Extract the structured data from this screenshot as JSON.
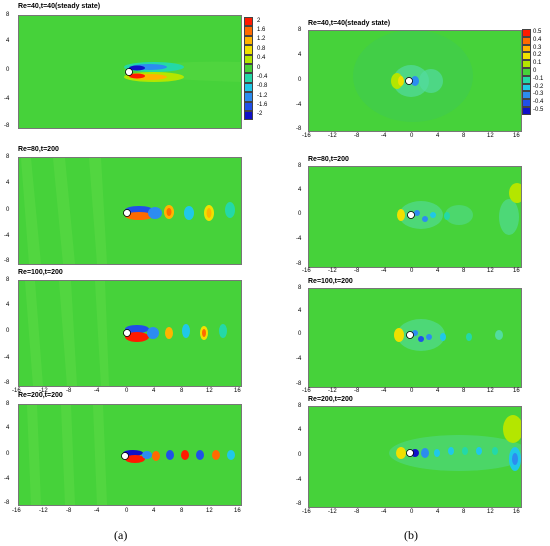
{
  "panels": [
    {
      "id": "a1",
      "title": "Re=40,t=40(steady state)",
      "column": "a"
    },
    {
      "id": "a2",
      "title": "Re=80,t=200",
      "column": "a"
    },
    {
      "id": "a3",
      "title": "Re=100,t=200",
      "column": "a"
    },
    {
      "id": "a4",
      "title": "Re=200,t=200",
      "column": "a"
    },
    {
      "id": "b1",
      "title": "Re=40,t=40(steady state)",
      "column": "b"
    },
    {
      "id": "b2",
      "title": "Re=80,t=200",
      "column": "b"
    },
    {
      "id": "b3",
      "title": "Re=100,t=200",
      "column": "b"
    },
    {
      "id": "b4",
      "title": "Re=200,t=200",
      "column": "b"
    }
  ],
  "axes": {
    "x_ticks_a": [
      "-16",
      "-12",
      "-8",
      "-4",
      "0",
      "4",
      "8",
      "12",
      "16"
    ],
    "x_ticks_b": [
      "-16",
      "-12",
      "-8",
      "-4",
      "0",
      "4",
      "8",
      "12",
      "16"
    ],
    "y_ticks": [
      "8",
      "4",
      "0",
      "-4",
      "-8"
    ]
  },
  "colorbar_a": {
    "labels": [
      "2",
      "1.6",
      "1.2",
      "0.8",
      "0.4",
      "0",
      "-0.4",
      "-0.8",
      "-1.2",
      "-1.6",
      "-2"
    ],
    "colors": [
      "#ff1a00",
      "#ff6a00",
      "#ffb400",
      "#f0e000",
      "#b4e600",
      "#46d23a",
      "#24d8a8",
      "#20c8e8",
      "#2c8cf0",
      "#2050e8",
      "#1010c8"
    ]
  },
  "colorbar_b": {
    "labels": [
      "0.5",
      "0.4",
      "0.3",
      "0.2",
      "0.1",
      "0",
      "-0.1",
      "-0.2",
      "-0.3",
      "-0.4",
      "-0.5"
    ],
    "colors": [
      "#ff1a00",
      "#ff6a00",
      "#ffb400",
      "#f0e000",
      "#b4e600",
      "#46d23a",
      "#24d8a8",
      "#20c8e8",
      "#2c8cf0",
      "#2050e8",
      "#1010c8"
    ]
  },
  "captions": {
    "a": "(a)",
    "b": "(b)"
  }
}
